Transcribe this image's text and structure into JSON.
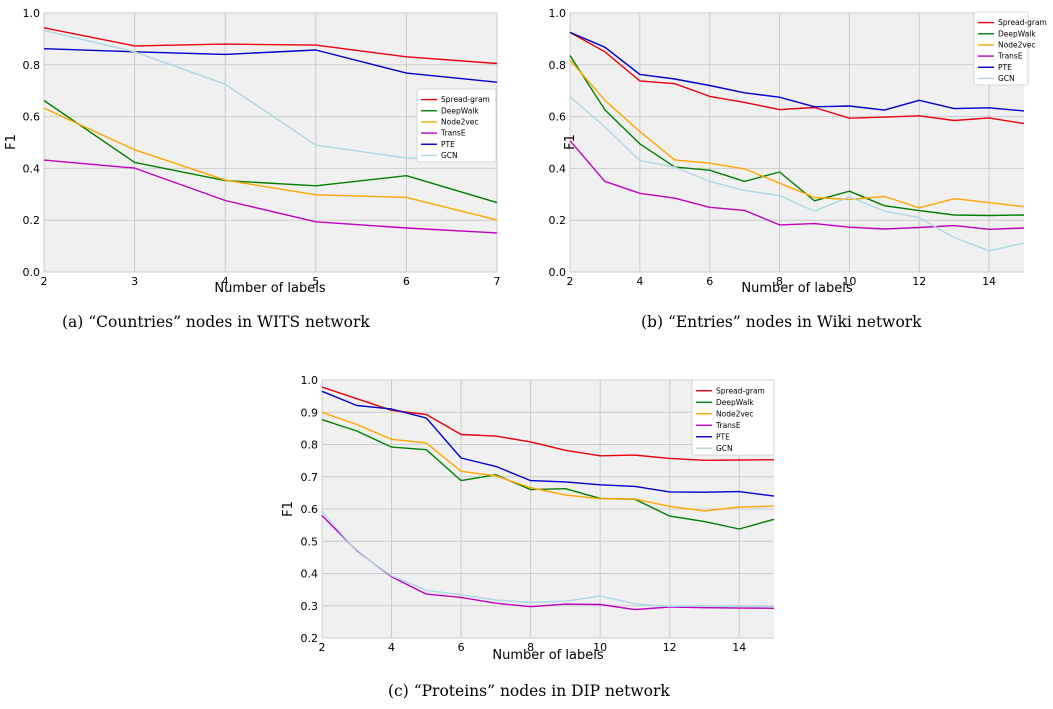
{
  "chart_data": [
    {
      "id": "a",
      "type": "line",
      "caption": "(a)  “Countries” nodes in WITS network",
      "xlabel": "Number of labels",
      "ylabel": "F1",
      "xlim": [
        2,
        7
      ],
      "ylim": [
        0.0,
        1.0
      ],
      "xticks": [
        2,
        3,
        4,
        5,
        6,
        7
      ],
      "xtick_labels": [
        "2",
        "3",
        "4",
        "5",
        "6",
        "7"
      ],
      "yticks": [
        0.0,
        0.2,
        0.4,
        0.6,
        0.8,
        1.0
      ],
      "ytick_labels": [
        "0.0",
        "0.2",
        "0.4",
        "0.6",
        "0.8",
        "1.0"
      ],
      "grid": true,
      "legend_position": "center-right",
      "x": [
        2,
        3,
        4,
        5,
        6,
        7
      ],
      "series": [
        {
          "name": "Spread-gram",
          "color": "#e8000b",
          "values": [
            0.943,
            0.873,
            0.88,
            0.876,
            0.831,
            0.805
          ]
        },
        {
          "name": "DeepWalk",
          "color": "#008000",
          "values": [
            0.662,
            0.423,
            0.353,
            0.333,
            0.372,
            0.268
          ]
        },
        {
          "name": "Node2vec",
          "color": "#ffa500",
          "values": [
            0.633,
            0.472,
            0.355,
            0.298,
            0.288,
            0.201
          ]
        },
        {
          "name": "TransE",
          "color": "#bf00bf",
          "values": [
            0.432,
            0.401,
            0.276,
            0.194,
            0.17,
            0.151
          ]
        },
        {
          "name": "PTE",
          "color": "#0000cd",
          "values": [
            0.862,
            0.85,
            0.84,
            0.857,
            0.768,
            0.733
          ]
        },
        {
          "name": "GCN",
          "color": "#add8e6",
          "values": [
            0.933,
            0.85,
            0.725,
            0.49,
            0.44,
            0.428
          ]
        }
      ]
    },
    {
      "id": "b",
      "type": "line",
      "caption": "(b) “Entries” nodes in Wiki network",
      "xlabel": "Number of labels",
      "ylabel": "F1",
      "xlim": [
        2,
        15
      ],
      "ylim": [
        0.0,
        1.0
      ],
      "xticks": [
        2,
        4,
        6,
        8,
        10,
        12,
        14
      ],
      "xtick_labels": [
        "2",
        "4",
        "6",
        "8",
        "10",
        "12",
        "14"
      ],
      "yticks": [
        0.0,
        0.2,
        0.4,
        0.6,
        0.8,
        1.0
      ],
      "ytick_labels": [
        "0.0",
        "0.2",
        "0.4",
        "0.6",
        "0.8",
        "1.0"
      ],
      "grid": true,
      "legend_position": "top-right",
      "x": [
        2,
        3,
        4,
        5,
        6,
        7,
        8,
        9,
        10,
        11,
        12,
        13,
        14,
        15
      ],
      "series": [
        {
          "name": "Spread-gram",
          "color": "#e8000b",
          "values": [
            0.925,
            0.85,
            0.738,
            0.727,
            0.678,
            0.655,
            0.627,
            0.635,
            0.594,
            0.598,
            0.603,
            0.585,
            0.595,
            0.573
          ]
        },
        {
          "name": "DeepWalk",
          "color": "#008000",
          "values": [
            0.836,
            0.626,
            0.495,
            0.405,
            0.393,
            0.35,
            0.386,
            0.275,
            0.312,
            0.256,
            0.237,
            0.22,
            0.218,
            0.22
          ]
        },
        {
          "name": "Node2vec",
          "color": "#ffa500",
          "values": [
            0.818,
            0.663,
            0.542,
            0.433,
            0.42,
            0.398,
            0.343,
            0.288,
            0.28,
            0.292,
            0.248,
            0.283,
            0.268,
            0.252
          ]
        },
        {
          "name": "TransE",
          "color": "#bf00bf",
          "values": [
            0.507,
            0.35,
            0.304,
            0.285,
            0.25,
            0.238,
            0.182,
            0.187,
            0.173,
            0.166,
            0.172,
            0.179,
            0.165,
            0.17
          ]
        },
        {
          "name": "PTE",
          "color": "#0000cd",
          "values": [
            0.925,
            0.868,
            0.763,
            0.745,
            0.72,
            0.692,
            0.675,
            0.638,
            0.641,
            0.625,
            0.663,
            0.631,
            0.634,
            0.622
          ]
        },
        {
          "name": "GCN",
          "color": "#add8e6",
          "values": [
            0.677,
            0.56,
            0.43,
            0.405,
            0.35,
            0.315,
            0.295,
            0.235,
            0.29,
            0.235,
            0.21,
            0.133,
            0.082,
            0.112
          ]
        }
      ]
    },
    {
      "id": "c",
      "type": "line",
      "caption": "(c) “Proteins” nodes in DIP network",
      "xlabel": "Number of labels",
      "ylabel": "F1",
      "xlim": [
        2,
        15
      ],
      "ylim": [
        0.2,
        1.0
      ],
      "xticks": [
        2,
        4,
        6,
        8,
        10,
        12,
        14
      ],
      "xtick_labels": [
        "2",
        "4",
        "6",
        "8",
        "10",
        "12",
        "14"
      ],
      "yticks": [
        0.2,
        0.3,
        0.4,
        0.5,
        0.6,
        0.7,
        0.8,
        0.9,
        1.0
      ],
      "ytick_labels": [
        "0.2",
        "0.3",
        "0.4",
        "0.5",
        "0.6",
        "0.7",
        "0.8",
        "0.9",
        "1.0"
      ],
      "grid": true,
      "legend_position": "top-right",
      "x": [
        2,
        3,
        4,
        5,
        6,
        7,
        8,
        9,
        10,
        11,
        12,
        13,
        14,
        15
      ],
      "series": [
        {
          "name": "Spread-gram",
          "color": "#e8000b",
          "values": [
            0.978,
            0.942,
            0.906,
            0.893,
            0.831,
            0.826,
            0.808,
            0.782,
            0.765,
            0.767,
            0.757,
            0.751,
            0.752,
            0.753
          ]
        },
        {
          "name": "DeepWalk",
          "color": "#008000",
          "values": [
            0.877,
            0.842,
            0.792,
            0.784,
            0.688,
            0.706,
            0.66,
            0.663,
            0.633,
            0.63,
            0.578,
            0.561,
            0.538,
            0.568
          ]
        },
        {
          "name": "Node2vec",
          "color": "#ffa500",
          "values": [
            0.9,
            0.862,
            0.816,
            0.805,
            0.717,
            0.703,
            0.666,
            0.643,
            0.632,
            0.631,
            0.608,
            0.594,
            0.606,
            0.609
          ]
        },
        {
          "name": "TransE",
          "color": "#bf00bf",
          "values": [
            0.58,
            0.47,
            0.39,
            0.336,
            0.326,
            0.308,
            0.297,
            0.305,
            0.304,
            0.288,
            0.296,
            0.294,
            0.293,
            0.292
          ]
        },
        {
          "name": "PTE",
          "color": "#0000cd",
          "values": [
            0.965,
            0.921,
            0.91,
            0.882,
            0.758,
            0.732,
            0.688,
            0.684,
            0.675,
            0.67,
            0.653,
            0.652,
            0.654,
            0.64
          ]
        },
        {
          "name": "GCN",
          "color": "#add8e6",
          "values": [
            0.592,
            0.468,
            0.393,
            0.348,
            0.334,
            0.318,
            0.31,
            0.314,
            0.33,
            0.306,
            0.298,
            0.3,
            0.297,
            0.298
          ]
        }
      ]
    }
  ]
}
